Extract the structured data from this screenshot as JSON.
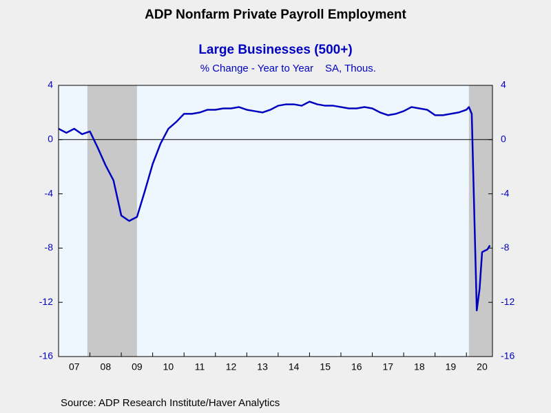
{
  "chart_data": {
    "type": "line",
    "title": "ADP Nonfarm Private Payroll Employment",
    "subtitle": "Large Businesses (500+)",
    "y_label": "% Change - Year to Year",
    "units": "SA, Thous.",
    "source": "Source:  ADP Research Institute/Haver Analytics",
    "xlim": [
      2007,
      2020.83
    ],
    "xticks": [
      {
        "value": 2007,
        "label": "07"
      },
      {
        "value": 2008,
        "label": "08"
      },
      {
        "value": 2009,
        "label": "09"
      },
      2010,
      2011,
      2012,
      2013,
      2014,
      2015,
      2016,
      2017,
      2018,
      2019,
      2020
    ],
    "ylim": [
      -16,
      4
    ],
    "yticks": [
      4,
      0,
      -4,
      -8,
      -12,
      -16
    ],
    "y2lim": [
      -16,
      4
    ],
    "y2ticks": [
      4,
      0,
      -4,
      -8,
      -12,
      -16
    ],
    "shaded_periods": [
      [
        2007.92,
        2009.5
      ],
      [
        2020.08,
        2020.83
      ]
    ],
    "series": [
      {
        "color": "#0000c0",
        "x": [
          2007,
          2007.25,
          2007.5,
          2007.75,
          2008,
          2008.25,
          2008.5,
          2008.75,
          2009,
          2009.25,
          2009.5,
          2009.75,
          2010,
          2010.25,
          2010.5,
          2010.75,
          2011,
          2011.25,
          2011.5,
          2011.75,
          2012,
          2012.25,
          2012.5,
          2012.75,
          2013,
          2013.25,
          2013.5,
          2013.75,
          2014,
          2014.25,
          2014.5,
          2014.75,
          2015,
          2015.25,
          2015.5,
          2015.75,
          2016,
          2016.25,
          2016.5,
          2016.75,
          2017,
          2017.25,
          2017.5,
          2017.75,
          2018,
          2018.25,
          2018.5,
          2018.75,
          2019,
          2019.25,
          2019.5,
          2019.75,
          2020,
          2020.08,
          2020.17,
          2020.33,
          2020.42,
          2020.5,
          2020.58,
          2020.67,
          2020.75
        ],
        "values": [
          0.8,
          0.5,
          0.8,
          0.4,
          0.6,
          -0.6,
          -1.9,
          -3.0,
          -5.6,
          -6.0,
          -5.7,
          -3.8,
          -1.8,
          -0.3,
          0.8,
          1.3,
          1.9,
          1.9,
          2.0,
          2.2,
          2.2,
          2.3,
          2.3,
          2.4,
          2.2,
          2.1,
          2.0,
          2.2,
          2.5,
          2.6,
          2.6,
          2.5,
          2.8,
          2.6,
          2.5,
          2.5,
          2.4,
          2.3,
          2.3,
          2.4,
          2.3,
          2.0,
          1.8,
          1.9,
          2.1,
          2.4,
          2.3,
          2.2,
          1.8,
          1.8,
          1.9,
          2.0,
          2.2,
          2.4,
          1.9,
          -12.6,
          -11.0,
          -8.3,
          -8.2,
          -8.1,
          -7.8
        ]
      }
    ]
  }
}
